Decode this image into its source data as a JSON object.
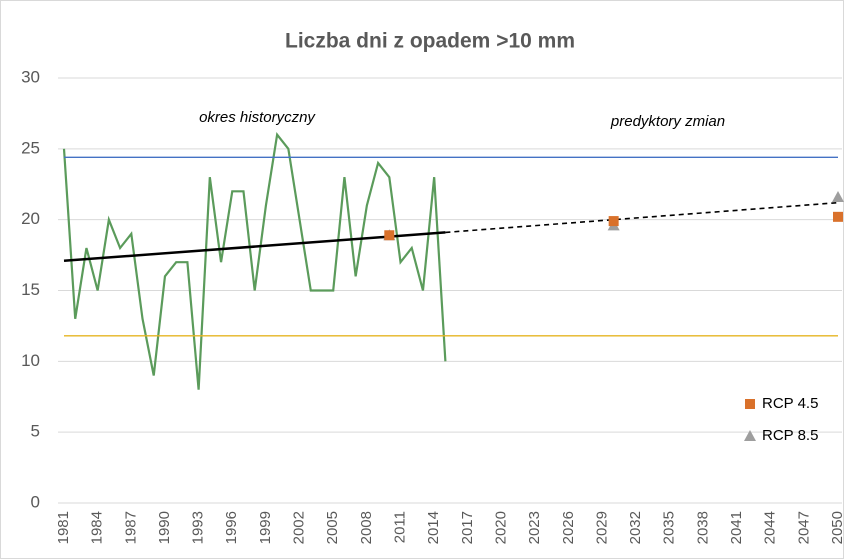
{
  "chart_data": {
    "type": "line",
    "title": "Liczba dni z opadem >10 mm",
    "annotations": [
      "okres historyczny",
      "predyktory zmian"
    ],
    "xlim": [
      1981,
      2050
    ],
    "xticks": [
      1981,
      1984,
      1987,
      1990,
      1993,
      1996,
      1999,
      2002,
      2005,
      2008,
      2011,
      2014,
      2017,
      2020,
      2023,
      2026,
      2029,
      2032,
      2035,
      2038,
      2041,
      2044,
      2047,
      2050
    ],
    "ylim": [
      0,
      30
    ],
    "yticks": [
      0,
      5,
      10,
      15,
      20,
      25,
      30
    ],
    "grid": true,
    "legend": "bottom-right",
    "series": [
      {
        "type": "line",
        "color": "#5b9b5b",
        "x": [
          1981,
          1982,
          1983,
          1984,
          1985,
          1986,
          1987,
          1988,
          1989,
          1990,
          1991,
          1992,
          1993,
          1994,
          1995,
          1996,
          1997,
          1998,
          1999,
          2000,
          2001,
          2002,
          2003,
          2004,
          2005,
          2006,
          2007,
          2008,
          2009,
          2010,
          2011,
          2012,
          2013,
          2014,
          2015
        ],
        "values": [
          25,
          13,
          18,
          15,
          20,
          18,
          19,
          13,
          9,
          16,
          17,
          17,
          8,
          23,
          17,
          22,
          22,
          15,
          21,
          26,
          25,
          20,
          15,
          15,
          15,
          23,
          16,
          21,
          24,
          23,
          17,
          18,
          15,
          23,
          10
        ]
      },
      {
        "type": "line",
        "color": "#000000",
        "x": [
          1981,
          2015
        ],
        "values": [
          17.1,
          19.1
        ]
      },
      {
        "type": "line",
        "color": "#000000",
        "dash": true,
        "x": [
          2015,
          2050
        ],
        "values": [
          19.1,
          21.2
        ]
      },
      {
        "type": "line",
        "color": "#4472c4",
        "x": [
          1981,
          2050
        ],
        "values": [
          24.4,
          24.4
        ]
      },
      {
        "type": "line",
        "color": "#e6b422",
        "x": [
          1981,
          2050
        ],
        "values": [
          11.8,
          11.8
        ]
      },
      {
        "type": "scatter",
        "name": "RCP 4.5",
        "marker": "square",
        "color": "#d9712b",
        "x": [
          2010,
          2030,
          2050
        ],
        "values": [
          18.9,
          19.9,
          20.2
        ]
      },
      {
        "type": "scatter",
        "name": "RCP 8.5",
        "marker": "triangle",
        "color": "#9e9e9e",
        "x": [
          2010,
          2030,
          2050
        ],
        "values": [
          18.9,
          19.6,
          21.6
        ]
      }
    ]
  }
}
